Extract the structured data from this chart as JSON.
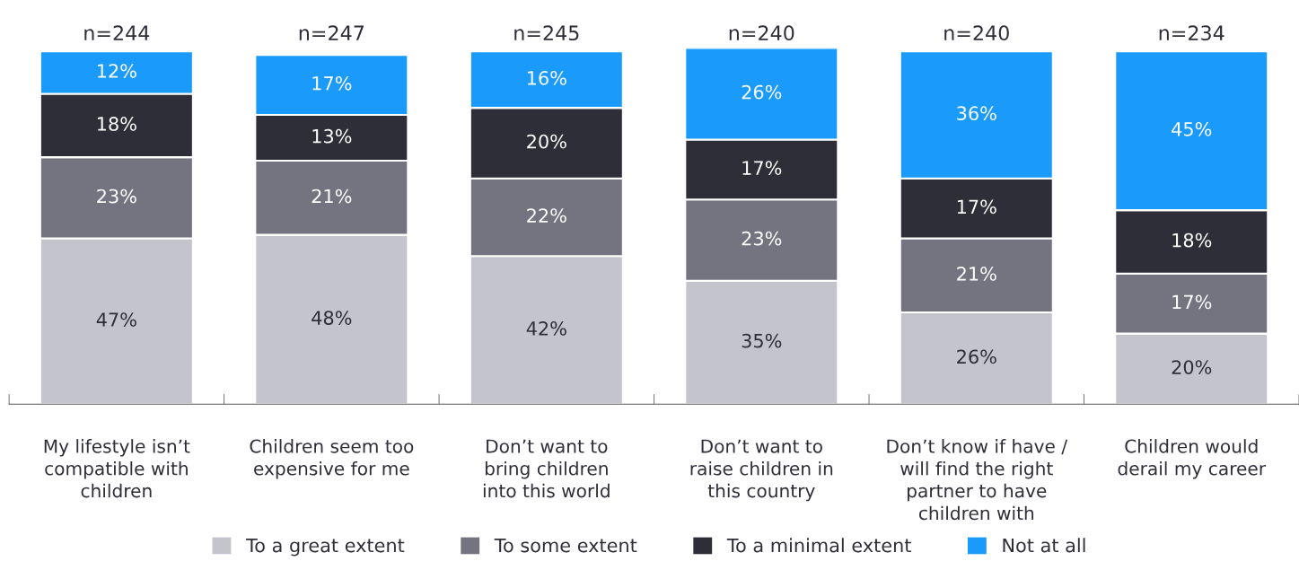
{
  "chart_data": {
    "type": "bar",
    "stacked": true,
    "categories": [
      "My lifestyle isn’t\ncompatible with\nchildren",
      "Children seem too\nexpensive for me",
      "Don’t want to\nbring children\ninto this world",
      "Don’t want to\nraise children in\nthis country",
      "Don’t know if have /\nwill find the right\npartner to have\nchildren with",
      "Children would\nderail my career"
    ],
    "series": [
      {
        "name": "To a great extent",
        "color": "#c4c4cd",
        "values": [
          47,
          48,
          42,
          35,
          26,
          20
        ],
        "value_labels": [
          "47%",
          "48%",
          "42%",
          "35%",
          "26%",
          "20%"
        ]
      },
      {
        "name": "To some extent",
        "color": "#747480",
        "values": [
          23,
          21,
          22,
          23,
          21,
          17
        ],
        "value_labels": [
          "23%",
          "21%",
          "22%",
          "23%",
          "21%",
          "17%"
        ]
      },
      {
        "name": "To a minimal extent",
        "color": "#2e2e38",
        "values": [
          18,
          13,
          20,
          17,
          17,
          18
        ],
        "value_labels": [
          "18%",
          "13%",
          "20%",
          "17%",
          "17%",
          "18%"
        ]
      },
      {
        "name": "Not at all",
        "color": "#1a9afa",
        "values": [
          12,
          17,
          16,
          26,
          36,
          45
        ],
        "value_labels": [
          "12%",
          "17%",
          "16%",
          "26%",
          "36%",
          "45%"
        ]
      }
    ],
    "annotations": [
      {
        "text": "n=244",
        "x": "My lifestyle isn’t\ncompatible with\nchildren",
        "y": 100
      },
      {
        "text": "n=247",
        "x": "Children seem too\nexpensive for me",
        "y": 100
      },
      {
        "text": "n=245",
        "x": "Don’t want to\nbring children\ninto this world",
        "y": 100
      },
      {
        "text": "n=240",
        "x": "Don’t want to\nraise children in\nthis country",
        "y": 100
      },
      {
        "text": "n=240",
        "x": "Don’t know if have /\nwill find the right\npartner to have\nchildren with",
        "y": 100
      },
      {
        "text": "n=234",
        "x": "Children would\nderail my career",
        "y": 100
      }
    ],
    "legend": "bottom"
  }
}
